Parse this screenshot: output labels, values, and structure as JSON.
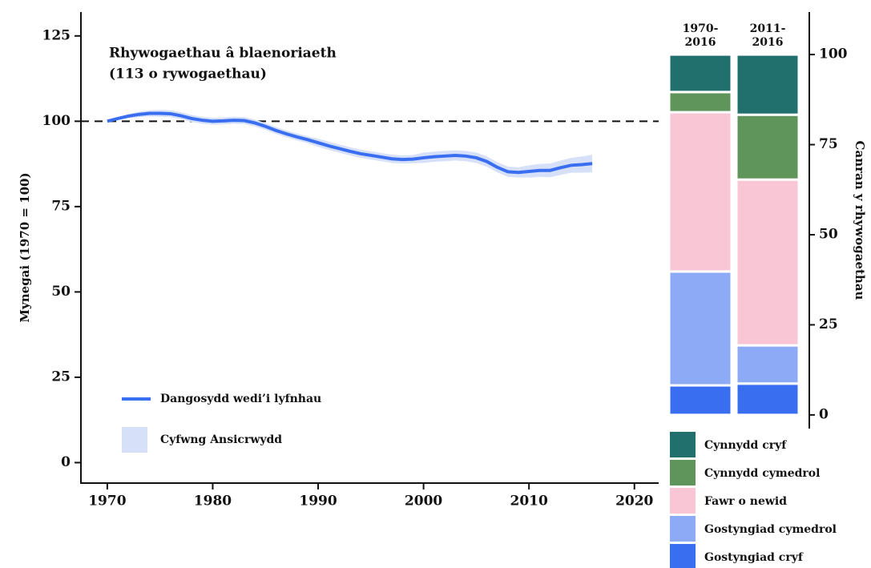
{
  "chart_data": [
    {
      "type": "line",
      "title": "Rhywogaethau â blaenoriaeth",
      "subtitle": "(113 o rywogaethau)",
      "ylabel": "Mynegai (1970 = 100)",
      "x": [
        1970,
        1971,
        1972,
        1973,
        1974,
        1975,
        1976,
        1977,
        1978,
        1979,
        1980,
        1981,
        1982,
        1983,
        1984,
        1985,
        1986,
        1987,
        1988,
        1989,
        1990,
        1991,
        1992,
        1993,
        1994,
        1995,
        1996,
        1997,
        1998,
        1999,
        2000,
        2001,
        2002,
        2003,
        2004,
        2005,
        2006,
        2007,
        2008,
        2009,
        2010,
        2011,
        2012,
        2013,
        2014,
        2015,
        2016
      ],
      "series": [
        {
          "name": "Dangosydd wedi’i lyfnhau",
          "color": "#3a6ef0",
          "values": [
            100,
            100.8,
            101.5,
            102,
            102.3,
            102.3,
            102.2,
            101.6,
            100.8,
            100.3,
            100,
            100.1,
            100.3,
            100.2,
            99.5,
            98.5,
            97.3,
            96.3,
            95.4,
            94.6,
            93.7,
            92.8,
            92,
            91.2,
            90.5,
            90,
            89.5,
            89,
            88.8,
            88.9,
            89.3,
            89.6,
            89.8,
            90,
            89.8,
            89.3,
            88.2,
            86.5,
            85.2,
            85,
            85.3,
            85.6,
            85.6,
            86.4,
            87.1,
            87.3,
            87.6
          ]
        }
      ],
      "band": {
        "name": "Cyfwng Ansicrwydd",
        "color": "#d6e0f8",
        "lower": [
          100,
          100.4,
          100.9,
          101.2,
          101.4,
          101.3,
          101.2,
          100.6,
          99.8,
          99.3,
          99,
          99.1,
          99.3,
          99.2,
          98.5,
          97.5,
          96.3,
          95.3,
          94.4,
          93.6,
          92.5,
          91.6,
          90.8,
          90,
          89.3,
          88.8,
          88.3,
          87.8,
          87.6,
          87.7,
          87.8,
          88.1,
          88.3,
          88.5,
          88.3,
          87.8,
          86.7,
          85,
          83.7,
          83.5,
          83.5,
          83.7,
          83.6,
          84.3,
          84.9,
          84.9,
          85
        ],
        "upper": [
          100,
          101.2,
          102.1,
          102.8,
          103.2,
          103.3,
          103.2,
          102.6,
          101.8,
          101.3,
          101,
          101.1,
          101.3,
          101.2,
          100.5,
          99.5,
          98.3,
          97.3,
          96.4,
          95.6,
          94.9,
          94,
          93.2,
          92.4,
          91.7,
          91.2,
          90.7,
          90.2,
          90,
          90.1,
          90.8,
          91.1,
          91.3,
          91.5,
          91.3,
          90.8,
          89.7,
          88,
          86.7,
          86.5,
          87.1,
          87.5,
          87.6,
          88.5,
          89.3,
          89.7,
          90.2
        ]
      },
      "reference_line": 100,
      "xlim": [
        1967.5,
        2022.3
      ],
      "xticks": [
        1970,
        1980,
        1990,
        2000,
        2010,
        2020
      ],
      "ylim": [
        -6,
        132
      ],
      "yticks": [
        0,
        25,
        50,
        75,
        100,
        125
      ]
    },
    {
      "type": "stacked_bar",
      "ylabel": "Canran y rhywogaethau",
      "categories": [
        "1970-\n2016",
        "2011-\n2016"
      ],
      "series": [
        {
          "name": "Gostyngiad cryf",
          "color": "#3a6ef0",
          "values": [
            8.2,
            8.7
          ]
        },
        {
          "name": "Gostyngiad cymedrol",
          "color": "#8daaf6",
          "values": [
            31.6,
            10.6
          ]
        },
        {
          "name": "Fawr o newid",
          "color": "#f9c6d6",
          "values": [
            44.2,
            46
          ]
        },
        {
          "name": "Cynnydd cymedrol",
          "color": "#5f955a",
          "values": [
            5.6,
            18
          ]
        },
        {
          "name": "Cynnydd cryf",
          "color": "#21706e",
          "values": [
            10.4,
            16.7
          ]
        }
      ],
      "ylim": [
        -3.8,
        111.8
      ],
      "yticks": [
        0,
        25,
        50,
        75,
        100
      ]
    }
  ]
}
